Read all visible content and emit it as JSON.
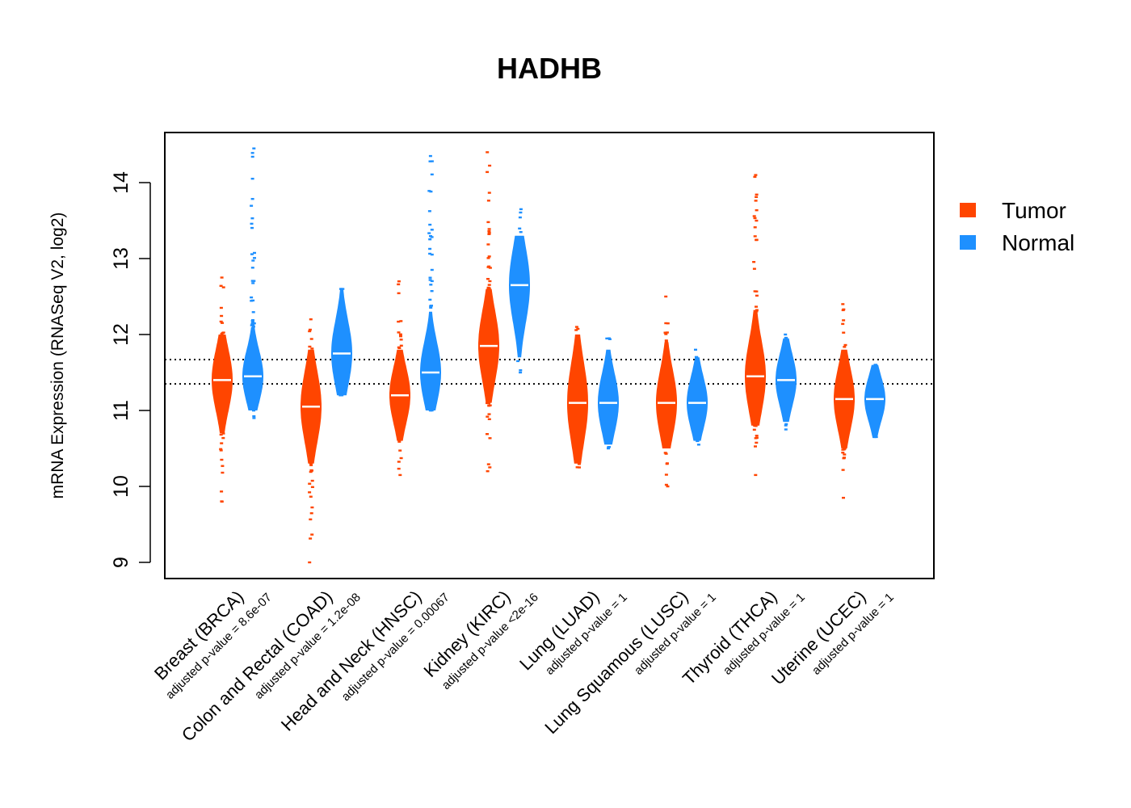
{
  "colors": {
    "tumor": "#ff4500",
    "normal": "#1e90ff",
    "axis": "#000000"
  },
  "chart_data": {
    "type": "violin-beeswarm",
    "title": "HADHB",
    "xlabel": "",
    "ylabel": "mRNA Expression (RNASeq V2, log2)",
    "ylim": [
      8.8,
      14.7
    ],
    "yticks": [
      9,
      10,
      11,
      12,
      13,
      14
    ],
    "reference_lines": [
      11.35,
      11.67
    ],
    "legend": {
      "position": "top-right",
      "entries": [
        "Tumor",
        "Normal"
      ]
    },
    "categories": [
      {
        "label": "Breast (BRCA)",
        "pvalue": "adjusted p-value = 8.6e-07",
        "tumor": {
          "median": 11.4,
          "lo": 9.8,
          "hi": 12.75,
          "core_lo": 10.7,
          "core_hi": 12.0
        },
        "normal": {
          "median": 11.45,
          "lo": 10.9,
          "hi": 14.45,
          "core_lo": 11.0,
          "core_hi": 12.1
        }
      },
      {
        "label": "Colon and Rectal (COAD)",
        "pvalue": "adjusted p-value = 1.2e-08",
        "tumor": {
          "median": 11.05,
          "lo": 9.0,
          "hi": 12.2,
          "core_lo": 10.3,
          "core_hi": 11.8
        },
        "normal": {
          "median": 11.75,
          "lo": 11.2,
          "hi": 12.6,
          "core_lo": 11.2,
          "core_hi": 12.6
        }
      },
      {
        "label": "Head and Neck (HNSC)",
        "pvalue": "adjusted p-value = 0.00067",
        "tumor": {
          "median": 11.2,
          "lo": 10.15,
          "hi": 12.7,
          "core_lo": 10.6,
          "core_hi": 11.8
        },
        "normal": {
          "median": 11.5,
          "lo": 11.0,
          "hi": 14.35,
          "core_lo": 11.0,
          "core_hi": 12.3
        }
      },
      {
        "label": "Kidney (KIRC)",
        "pvalue": "adjusted p-value <2e-16",
        "tumor": {
          "median": 11.85,
          "lo": 10.2,
          "hi": 14.4,
          "core_lo": 11.1,
          "core_hi": 12.6
        },
        "normal": {
          "median": 12.65,
          "lo": 11.5,
          "hi": 13.65,
          "core_lo": 11.7,
          "core_hi": 13.3
        }
      },
      {
        "label": "Lung (LUAD)",
        "pvalue": "adjusted p-value = 1",
        "tumor": {
          "median": 11.1,
          "lo": 10.25,
          "hi": 12.1,
          "core_lo": 10.3,
          "core_hi": 12.0
        },
        "normal": {
          "median": 11.1,
          "lo": 10.5,
          "hi": 11.95,
          "core_lo": 10.55,
          "core_hi": 11.8
        }
      },
      {
        "label": "Lung Squamous (LUSC)",
        "pvalue": "adjusted p-value = 1",
        "tumor": {
          "median": 11.1,
          "lo": 10.0,
          "hi": 12.5,
          "core_lo": 10.5,
          "core_hi": 11.9
        },
        "normal": {
          "median": 11.1,
          "lo": 10.55,
          "hi": 11.8,
          "core_lo": 10.6,
          "core_hi": 11.7
        }
      },
      {
        "label": "Thyroid (THCA)",
        "pvalue": "adjusted p-value = 1",
        "tumor": {
          "median": 11.45,
          "lo": 10.15,
          "hi": 14.1,
          "core_lo": 10.8,
          "core_hi": 12.3
        },
        "normal": {
          "median": 11.4,
          "lo": 10.75,
          "hi": 12.0,
          "core_lo": 10.85,
          "core_hi": 11.95
        }
      },
      {
        "label": "Uterine (UCEC)",
        "pvalue": "adjusted p-value = 1",
        "tumor": {
          "median": 11.15,
          "lo": 9.85,
          "hi": 12.4,
          "core_lo": 10.5,
          "core_hi": 11.8
        },
        "normal": {
          "median": 11.15,
          "lo": 10.65,
          "hi": 11.6,
          "core_lo": 10.65,
          "core_hi": 11.6
        }
      }
    ]
  }
}
